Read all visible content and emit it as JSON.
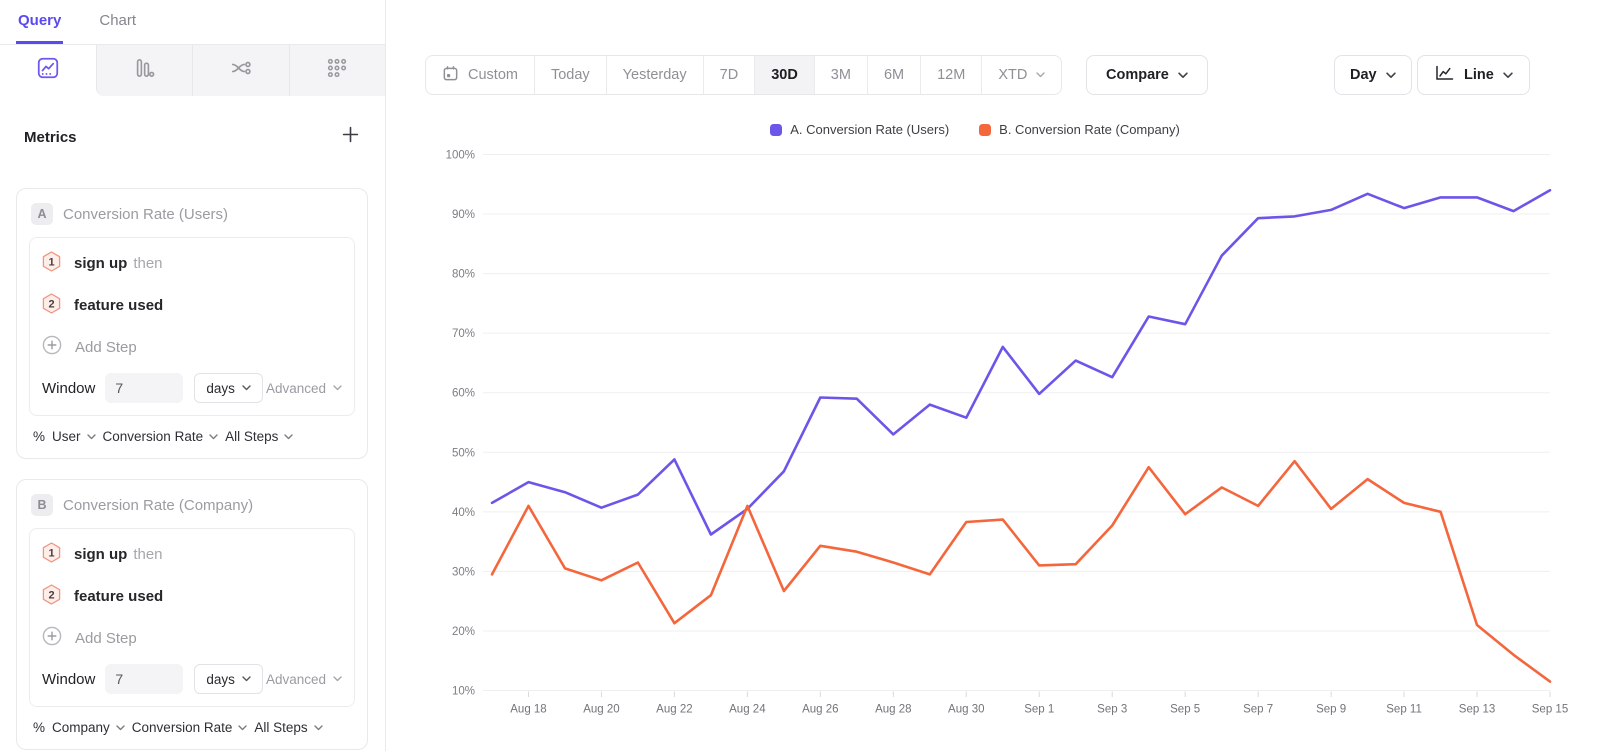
{
  "sidebar": {
    "tabs": [
      {
        "label": "Query"
      },
      {
        "label": "Chart"
      }
    ],
    "active_tab": "Query",
    "chart_type_icons": [
      "line-chart-icon",
      "bar-chart-icon",
      "flow-chart-icon",
      "dots-grid-icon"
    ],
    "active_chart_type": "line-chart-icon",
    "metrics_header": {
      "title": "Metrics",
      "add_icon": "plus-icon"
    },
    "metrics": [
      {
        "badge": "A",
        "title": "Conversion Rate (Users)",
        "steps": [
          {
            "num": "1",
            "event": "sign up",
            "suffix": "then"
          },
          {
            "num": "2",
            "event": "feature used",
            "suffix": ""
          }
        ],
        "add_step_label": "Add Step",
        "window": {
          "label": "Window",
          "value": "7",
          "unit": "days",
          "advanced_label": "Advanced"
        },
        "measure": {
          "prefix": "%",
          "entity": "User",
          "metric": "Conversion Rate",
          "scope": "All Steps"
        }
      },
      {
        "badge": "B",
        "title": "Conversion Rate (Company)",
        "steps": [
          {
            "num": "1",
            "event": "sign up",
            "suffix": "then"
          },
          {
            "num": "2",
            "event": "feature used",
            "suffix": ""
          }
        ],
        "add_step_label": "Add Step",
        "window": {
          "label": "Window",
          "value": "7",
          "unit": "days",
          "advanced_label": "Advanced"
        },
        "measure": {
          "prefix": "%",
          "entity": "Company",
          "metric": "Conversion Rate",
          "scope": "All Steps"
        }
      }
    ]
  },
  "toolbar": {
    "date_ranges": [
      {
        "label": "Custom"
      },
      {
        "label": "Today"
      },
      {
        "label": "Yesterday"
      },
      {
        "label": "7D"
      },
      {
        "label": "30D"
      },
      {
        "label": "3M"
      },
      {
        "label": "6M"
      },
      {
        "label": "12M"
      },
      {
        "label": "XTD"
      }
    ],
    "active_range": "30D",
    "compare_label": "Compare",
    "granularity_label": "Day",
    "chart_style_label": "Line"
  },
  "legend": {
    "items": [
      {
        "label": "A. Conversion Rate (Users)",
        "color": "#6C56EA"
      },
      {
        "label": "B. Conversion Rate (Company)",
        "color": "#F4673D"
      }
    ]
  },
  "chart_data": {
    "type": "line",
    "title": "",
    "xlabel": "",
    "ylabel": "",
    "ylabel_format": "percent",
    "ylim": [
      10,
      100
    ],
    "yticks": [
      100,
      90,
      80,
      70,
      60,
      50,
      40,
      30,
      20,
      10
    ],
    "grid": "horizontal",
    "legend_position": "top-center",
    "x": [
      "Aug 17",
      "Aug 18",
      "Aug 19",
      "Aug 20",
      "Aug 21",
      "Aug 22",
      "Aug 23",
      "Aug 24",
      "Aug 25",
      "Aug 26",
      "Aug 27",
      "Aug 28",
      "Aug 29",
      "Aug 30",
      "Aug 31",
      "Sep 1",
      "Sep 2",
      "Sep 3",
      "Sep 4",
      "Sep 5",
      "Sep 6",
      "Sep 7",
      "Sep 8",
      "Sep 9",
      "Sep 10",
      "Sep 11",
      "Sep 12",
      "Sep 13",
      "Sep 14",
      "Sep 15"
    ],
    "x_tick_labels": [
      "Aug 18",
      "Aug 20",
      "Aug 22",
      "Aug 24",
      "Aug 26",
      "Aug 28",
      "Aug 30",
      "Sep 1",
      "Sep 3",
      "Sep 5",
      "Sep 7",
      "Sep 9",
      "Sep 11",
      "Sep 13",
      "Sep 15"
    ],
    "series": [
      {
        "name": "A. Conversion Rate (Users)",
        "color": "#6C56EA",
        "values": [
          41.5,
          45,
          43.3,
          40.7,
          42.9,
          48.8,
          36.2,
          40.5,
          46.8,
          59.2,
          59,
          53,
          58,
          55.8,
          67.7,
          59.8,
          65.4,
          62.6,
          72.8,
          71.5,
          83,
          89.3,
          89.6,
          90.7,
          93.4,
          91,
          92.8,
          92.8,
          90.5,
          94
        ]
      },
      {
        "name": "B. Conversion Rate (Company)",
        "color": "#F4673D",
        "values": [
          29.5,
          41,
          30.5,
          28.5,
          31.5,
          21.3,
          26,
          41,
          26.7,
          34.3,
          33.3,
          31.5,
          29.5,
          38.3,
          38.7,
          31,
          31.2,
          37.7,
          47.5,
          39.6,
          44.1,
          41,
          48.5,
          40.5,
          45.5,
          41.5,
          40,
          21,
          16,
          11.5
        ]
      }
    ]
  }
}
